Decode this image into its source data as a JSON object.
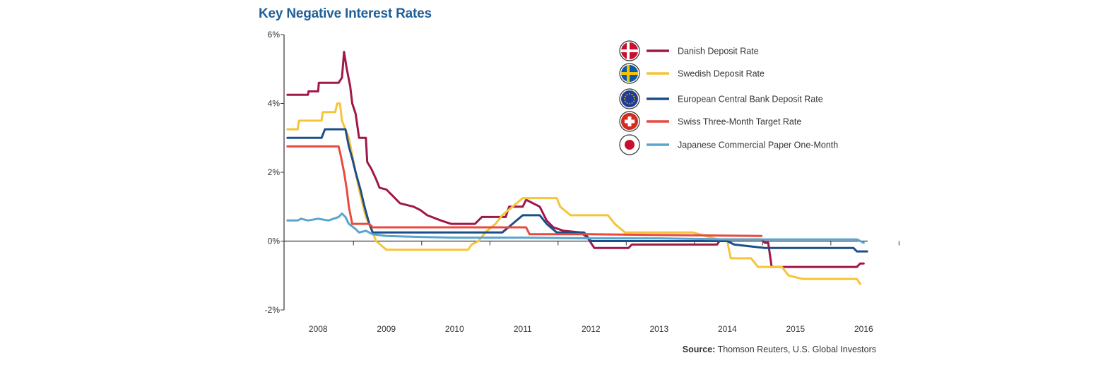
{
  "chart_data": {
    "type": "line",
    "title": "Key Negative Interest Rates",
    "source_label": "Source:",
    "source_text": "Thomson Reuters, U.S. Global Investors",
    "xlim": [
      2007.5,
      2016.1
    ],
    "ylim": [
      -2,
      6
    ],
    "y_ticks": [
      {
        "value": 6,
        "label": "6%"
      },
      {
        "value": 4,
        "label": "4%"
      },
      {
        "value": 2,
        "label": "2%"
      },
      {
        "value": 0,
        "label": "0%"
      },
      {
        "value": -2,
        "label": "-2%"
      }
    ],
    "x_ticks": [
      {
        "value": 2008,
        "label": "2008"
      },
      {
        "value": 2009,
        "label": "2009"
      },
      {
        "value": 2010,
        "label": "2010"
      },
      {
        "value": 2011,
        "label": "2011"
      },
      {
        "value": 2012,
        "label": "2012"
      },
      {
        "value": 2013,
        "label": "2013"
      },
      {
        "value": 2014,
        "label": "2014"
      },
      {
        "value": 2015,
        "label": "2015"
      },
      {
        "value": 2016,
        "label": "2016"
      }
    ],
    "grid": false,
    "legend_position": "top-right",
    "series": [
      {
        "name": "Danish Deposit Rate",
        "color": "#a0174a",
        "flag_icon": "denmark-flag-icon",
        "points": [
          [
            2007.55,
            4.25
          ],
          [
            2007.85,
            4.25
          ],
          [
            2007.86,
            4.35
          ],
          [
            2008.0,
            4.35
          ],
          [
            2008.01,
            4.6
          ],
          [
            2008.3,
            4.6
          ],
          [
            2008.35,
            4.75
          ],
          [
            2008.38,
            5.5
          ],
          [
            2008.42,
            5.0
          ],
          [
            2008.47,
            4.5
          ],
          [
            2008.5,
            4.0
          ],
          [
            2008.55,
            3.7
          ],
          [
            2008.6,
            3.0
          ],
          [
            2008.7,
            3.0
          ],
          [
            2008.72,
            2.3
          ],
          [
            2008.78,
            2.1
          ],
          [
            2008.85,
            1.8
          ],
          [
            2008.9,
            1.55
          ],
          [
            2009.0,
            1.5
          ],
          [
            2009.1,
            1.3
          ],
          [
            2009.2,
            1.1
          ],
          [
            2009.4,
            1.0
          ],
          [
            2009.5,
            0.9
          ],
          [
            2009.6,
            0.75
          ],
          [
            2009.8,
            0.6
          ],
          [
            2009.95,
            0.5
          ],
          [
            2010.3,
            0.5
          ],
          [
            2010.4,
            0.7
          ],
          [
            2010.75,
            0.7
          ],
          [
            2010.8,
            1.0
          ],
          [
            2011.0,
            1.0
          ],
          [
            2011.05,
            1.2
          ],
          [
            2011.15,
            1.1
          ],
          [
            2011.25,
            1.0
          ],
          [
            2011.35,
            0.6
          ],
          [
            2011.45,
            0.4
          ],
          [
            2011.6,
            0.3
          ],
          [
            2011.85,
            0.25
          ],
          [
            2011.95,
            0.1
          ],
          [
            2012.05,
            -0.2
          ],
          [
            2012.55,
            -0.2
          ],
          [
            2012.6,
            -0.1
          ],
          [
            2013.3,
            -0.1
          ],
          [
            2013.85,
            -0.1
          ],
          [
            2013.9,
            0.05
          ],
          [
            2014.0,
            0.05
          ],
          [
            2014.5,
            0.05
          ],
          [
            2014.55,
            -0.05
          ],
          [
            2014.6,
            -0.05
          ],
          [
            2014.65,
            -0.75
          ],
          [
            2015.15,
            -0.75
          ],
          [
            2015.15,
            -0.75
          ],
          [
            2015.2,
            -0.75
          ],
          [
            2015.4,
            -0.75
          ],
          [
            2015.45,
            -0.75
          ],
          [
            2015.9,
            -0.75
          ],
          [
            2015.95,
            -0.65
          ],
          [
            2016.0,
            -0.65
          ]
        ]
      },
      {
        "name": "Swedish Deposit Rate",
        "color": "#f6c43a",
        "flag_icon": "sweden-flag-icon",
        "points": [
          [
            2007.55,
            3.25
          ],
          [
            2007.7,
            3.25
          ],
          [
            2007.72,
            3.5
          ],
          [
            2008.05,
            3.5
          ],
          [
            2008.07,
            3.75
          ],
          [
            2008.25,
            3.75
          ],
          [
            2008.28,
            4.0
          ],
          [
            2008.32,
            4.0
          ],
          [
            2008.35,
            3.5
          ],
          [
            2008.45,
            3.0
          ],
          [
            2008.5,
            2.5
          ],
          [
            2008.55,
            2.0
          ],
          [
            2008.6,
            1.5
          ],
          [
            2008.7,
            0.7
          ],
          [
            2008.75,
            0.5
          ],
          [
            2008.8,
            0.25
          ],
          [
            2008.85,
            0.0
          ],
          [
            2009.0,
            -0.25
          ],
          [
            2010.2,
            -0.25
          ],
          [
            2010.25,
            -0.1
          ],
          [
            2010.35,
            0.0
          ],
          [
            2010.45,
            0.25
          ],
          [
            2010.6,
            0.5
          ],
          [
            2010.7,
            0.75
          ],
          [
            2010.85,
            1.0
          ],
          [
            2011.0,
            1.25
          ],
          [
            2011.5,
            1.25
          ],
          [
            2011.55,
            1.0
          ],
          [
            2011.7,
            0.75
          ],
          [
            2012.25,
            0.75
          ],
          [
            2012.35,
            0.5
          ],
          [
            2012.5,
            0.25
          ],
          [
            2013.5,
            0.25
          ],
          [
            2013.95,
            0.0
          ],
          [
            2014.0,
            0.0
          ],
          [
            2014.05,
            -0.5
          ],
          [
            2014.35,
            -0.5
          ],
          [
            2014.45,
            -0.75
          ],
          [
            2014.8,
            -0.75
          ],
          [
            2014.9,
            -1.0
          ],
          [
            2015.1,
            -1.1
          ],
          [
            2015.9,
            -1.1
          ],
          [
            2015.95,
            -1.25
          ]
        ]
      },
      {
        "name": "European Central Bank Deposit Rate",
        "color": "#1b4f8a",
        "flag_icon": "eu-flag-icon",
        "points": [
          [
            2007.55,
            3.0
          ],
          [
            2008.05,
            3.0
          ],
          [
            2008.1,
            3.25
          ],
          [
            2008.4,
            3.25
          ],
          [
            2008.45,
            2.75
          ],
          [
            2008.5,
            2.4
          ],
          [
            2008.55,
            2.0
          ],
          [
            2008.62,
            1.5
          ],
          [
            2008.68,
            1.0
          ],
          [
            2008.75,
            0.5
          ],
          [
            2008.8,
            0.25
          ],
          [
            2010.7,
            0.25
          ],
          [
            2010.85,
            0.5
          ],
          [
            2011.0,
            0.75
          ],
          [
            2011.25,
            0.75
          ],
          [
            2011.35,
            0.5
          ],
          [
            2011.5,
            0.25
          ],
          [
            2011.9,
            0.25
          ],
          [
            2012.0,
            0.0
          ],
          [
            2014.0,
            0.0
          ],
          [
            2014.1,
            -0.1
          ],
          [
            2014.55,
            -0.2
          ],
          [
            2015.85,
            -0.2
          ],
          [
            2015.9,
            -0.3
          ],
          [
            2016.05,
            -0.3
          ]
        ]
      },
      {
        "name": "Swiss Three-Month Target Rate",
        "color": "#e94a3f",
        "flag_icon": "switzerland-flag-icon",
        "points": [
          [
            2007.55,
            2.75
          ],
          [
            2008.3,
            2.75
          ],
          [
            2008.33,
            2.5
          ],
          [
            2008.38,
            2.0
          ],
          [
            2008.42,
            1.5
          ],
          [
            2008.45,
            1.0
          ],
          [
            2008.5,
            0.5
          ],
          [
            2008.75,
            0.5
          ],
          [
            2008.8,
            0.4
          ],
          [
            2011.05,
            0.4
          ],
          [
            2011.1,
            0.2
          ],
          [
            2012.0,
            0.2
          ],
          [
            2014.5,
            0.15
          ]
        ]
      },
      {
        "name": "Japanese Commercial Paper One-Month",
        "color": "#5aa5cc",
        "flag_icon": "japan-flag-icon",
        "points": [
          [
            2007.55,
            0.6
          ],
          [
            2007.7,
            0.6
          ],
          [
            2007.75,
            0.65
          ],
          [
            2007.85,
            0.6
          ],
          [
            2008.0,
            0.65
          ],
          [
            2008.15,
            0.6
          ],
          [
            2008.3,
            0.7
          ],
          [
            2008.35,
            0.8
          ],
          [
            2008.4,
            0.7
          ],
          [
            2008.45,
            0.5
          ],
          [
            2008.55,
            0.35
          ],
          [
            2008.6,
            0.25
          ],
          [
            2008.7,
            0.3
          ],
          [
            2008.8,
            0.2
          ],
          [
            2009.0,
            0.15
          ],
          [
            2009.5,
            0.12
          ],
          [
            2010.0,
            0.1
          ],
          [
            2011.0,
            0.1
          ],
          [
            2012.0,
            0.08
          ],
          [
            2013.0,
            0.08
          ],
          [
            2014.0,
            0.05
          ],
          [
            2015.0,
            0.05
          ],
          [
            2015.9,
            0.05
          ],
          [
            2015.95,
            0.0
          ],
          [
            2016.0,
            -0.05
          ]
        ]
      }
    ]
  }
}
